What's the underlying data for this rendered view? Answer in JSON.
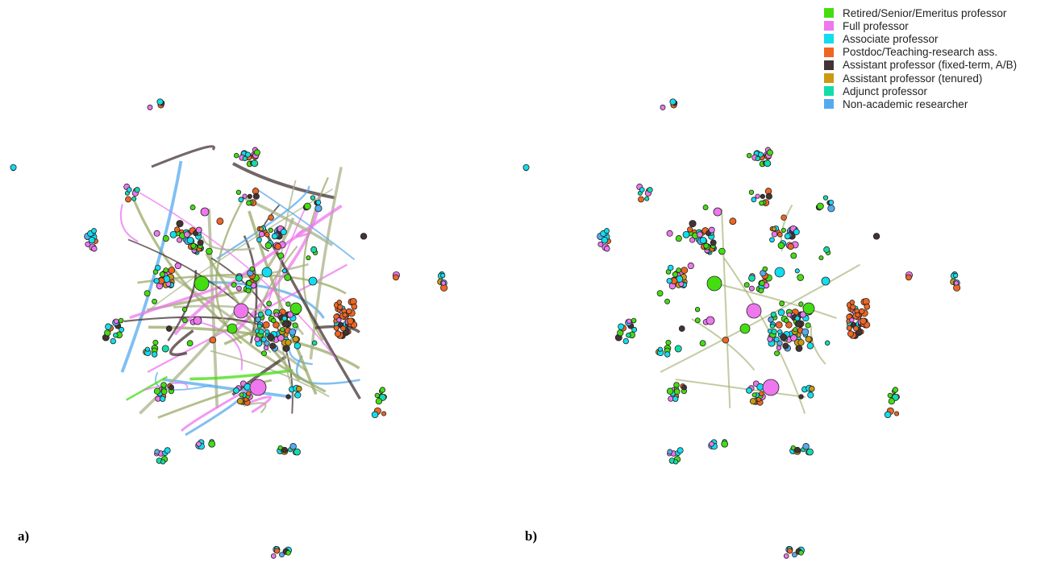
{
  "legend": [
    {
      "label": "Retired/Senior/Emeritus professor",
      "color": "#44dd11"
    },
    {
      "label": "Full professor",
      "color": "#ee77ee"
    },
    {
      "label": "Associate professor",
      "color": "#11ddee"
    },
    {
      "label": "Postdoc/Teaching-research ass.",
      "color": "#ee6622"
    },
    {
      "label": "Assistant professor (fixed-term, A/B)",
      "color": "#443333"
    },
    {
      "label": "Assistant professor (tenured)",
      "color": "#cc9911"
    },
    {
      "label": "Adjunct professor",
      "color": "#11ddaa"
    },
    {
      "label": "Non-academic researcher",
      "color": "#55aaee"
    }
  ],
  "panels": [
    {
      "label": "a)",
      "edges_visible": true
    },
    {
      "label": "b)",
      "edges_visible": false
    }
  ]
}
